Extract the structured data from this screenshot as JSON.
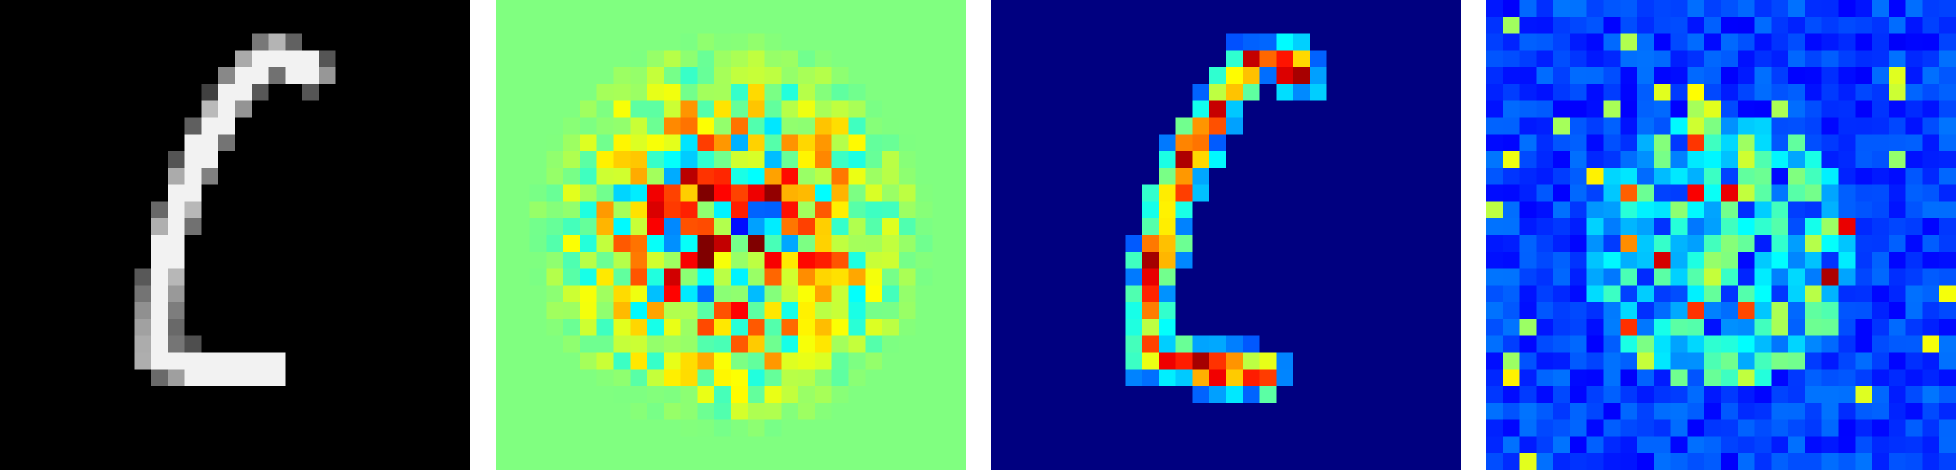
{
  "figure": {
    "grid_size": 28,
    "panels": [
      {
        "name": "input-digit",
        "colormap": "gray",
        "background": "#000000"
      },
      {
        "name": "saliency-map-1",
        "colormap": "jet",
        "background": "#96fa6a"
      },
      {
        "name": "saliency-map-2",
        "colormap": "jet",
        "background": "#00008b"
      },
      {
        "name": "saliency-map-3",
        "colormap": "jet",
        "background": "#0a1ecb"
      }
    ]
  }
}
